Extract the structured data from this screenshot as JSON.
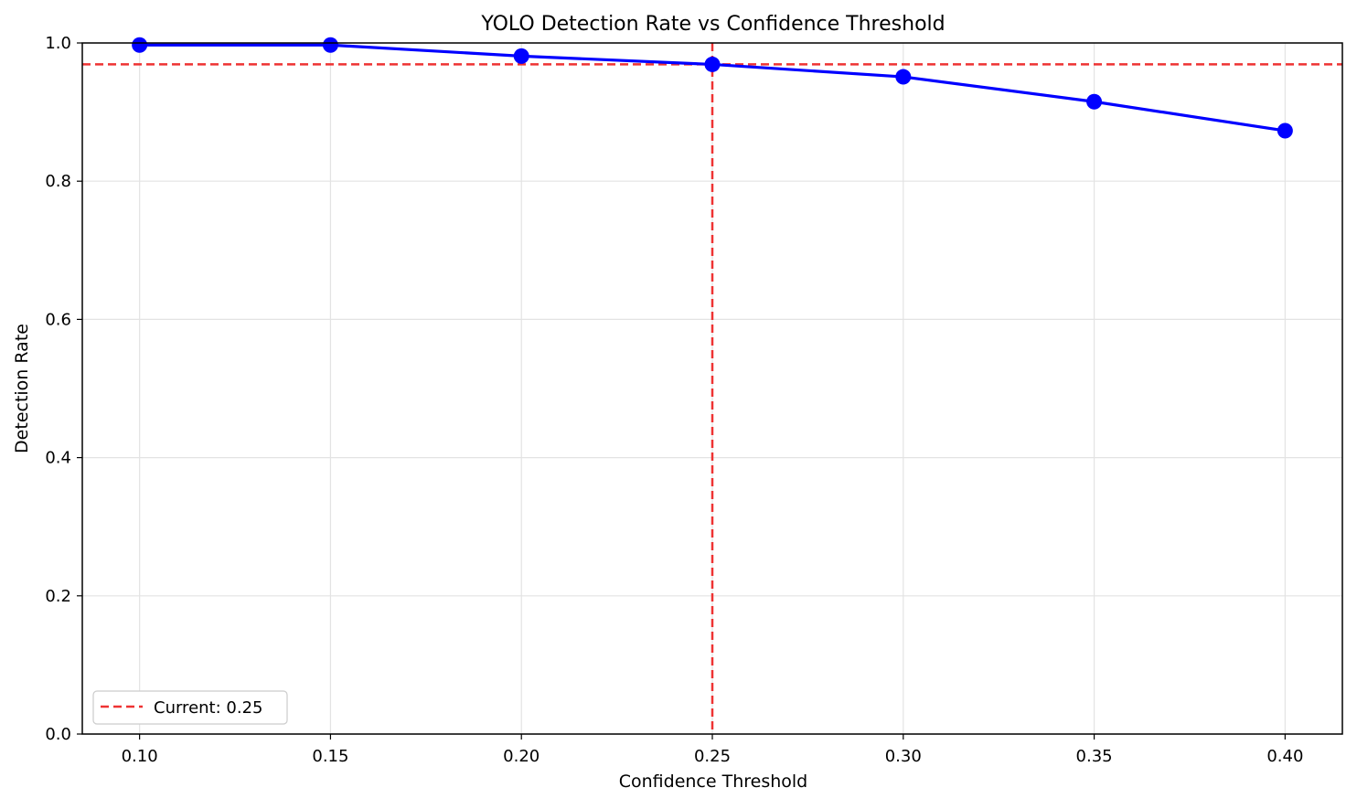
{
  "chart_data": {
    "type": "line",
    "title": "YOLO Detection Rate vs Confidence Threshold",
    "xlabel": "Confidence Threshold",
    "ylabel": "Detection Rate",
    "xlim": [
      0.085,
      0.415
    ],
    "ylim": [
      0.0,
      1.0
    ],
    "xticks": [
      0.1,
      0.15,
      0.2,
      0.25,
      0.3,
      0.35,
      0.4
    ],
    "xtick_labels": [
      "0.10",
      "0.15",
      "0.20",
      "0.25",
      "0.30",
      "0.35",
      "0.40"
    ],
    "yticks": [
      0.0,
      0.2,
      0.4,
      0.6,
      0.8,
      1.0
    ],
    "ytick_labels": [
      "0.0",
      "0.2",
      "0.4",
      "0.6",
      "0.8",
      "1.0"
    ],
    "grid": true,
    "legend_position": "lower-left",
    "series": [
      {
        "x": [
          0.1,
          0.15,
          0.2,
          0.25,
          0.3,
          0.35,
          0.4
        ],
        "y": [
          0.997,
          0.997,
          0.981,
          0.969,
          0.951,
          0.915,
          0.873
        ],
        "color": "#0000ff",
        "marker": "circle"
      }
    ],
    "reference_lines": [
      {
        "orientation": "vertical",
        "value": 0.25,
        "color": "#ee3333",
        "style": "dashed",
        "label": "Current: 0.25"
      },
      {
        "orientation": "horizontal",
        "value": 0.969,
        "color": "#ee3333",
        "style": "dashed"
      }
    ]
  }
}
